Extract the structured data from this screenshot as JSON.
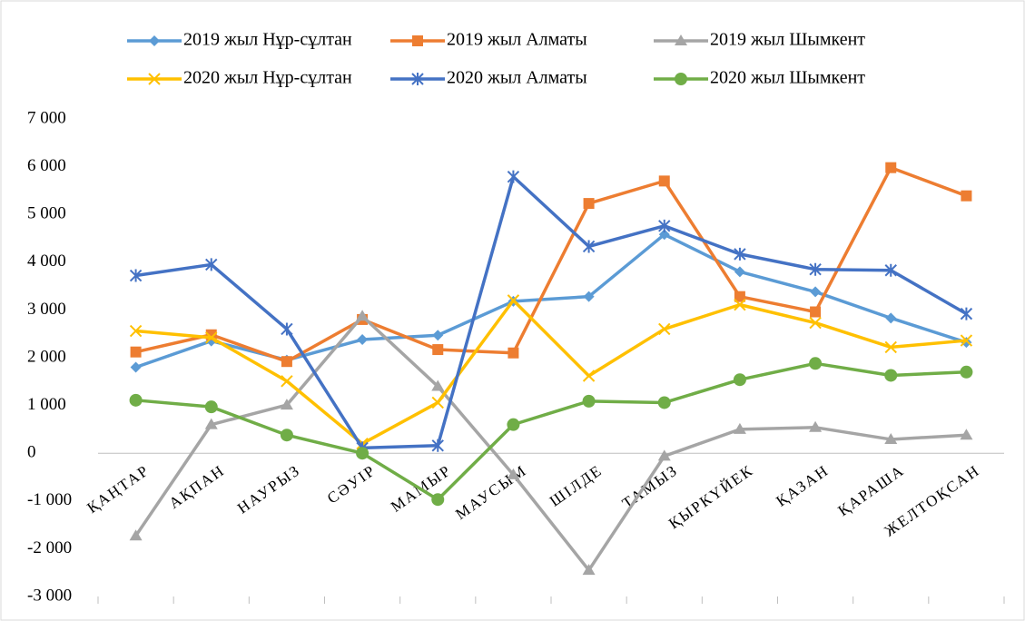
{
  "chart_data": {
    "type": "line",
    "categories": [
      "ҚАҢТАР",
      "АҚПАН",
      "НАУРЫЗ",
      "СӘУІР",
      "МАМЫР",
      "МАУСЫМ",
      "ШІЛДЕ",
      "ТАМЫЗ",
      "ҚЫРКҮЙЕК",
      "ҚАЗАН",
      "ҚАРАША",
      "ЖЕЛТОҚСАН"
    ],
    "series": [
      {
        "name": "2019 жыл Нұр-сұлтан",
        "color": "#5b9bd5",
        "marker": "diamond",
        "values": [
          1800,
          2350,
          1950,
          2380,
          2470,
          3180,
          3280,
          4580,
          3800,
          3380,
          2830,
          2320
        ]
      },
      {
        "name": "2019 жыл Алматы",
        "color": "#ed7d31",
        "marker": "square",
        "values": [
          2120,
          2480,
          1920,
          2800,
          2170,
          2100,
          5230,
          5700,
          3280,
          2960,
          5980,
          5390
        ]
      },
      {
        "name": "2019 жыл Шымкент",
        "color": "#a5a5a5",
        "marker": "triangle",
        "values": [
          -1730,
          600,
          1010,
          2870,
          1400,
          -450,
          -2450,
          -60,
          500,
          540,
          290,
          380
        ]
      },
      {
        "name": "2020 жыл Нұр-сұлтан",
        "color": "#ffc000",
        "marker": "x",
        "values": [
          2560,
          2420,
          1510,
          200,
          1060,
          3200,
          1620,
          2600,
          3110,
          2730,
          2220,
          2360
        ]
      },
      {
        "name": "2020 жыл Алматы",
        "color": "#4472c4",
        "marker": "star",
        "values": [
          3720,
          3950,
          2600,
          110,
          160,
          5790,
          4330,
          4760,
          4170,
          3850,
          3830,
          2920
        ]
      },
      {
        "name": "2020 жыл Шымкент",
        "color": "#70ad47",
        "marker": "circle",
        "values": [
          1110,
          970,
          380,
          0,
          -970,
          600,
          1090,
          1060,
          1540,
          1880,
          1630,
          1700
        ]
      }
    ],
    "ylim": [
      -3000,
      7000
    ],
    "yticks": [
      {
        "value": -3000,
        "label": "-3 000"
      },
      {
        "value": -2000,
        "label": "-2 000"
      },
      {
        "value": -1000,
        "label": "-1 000"
      },
      0,
      {
        "value": 1000,
        "label": "1 000"
      },
      {
        "value": 2000,
        "label": "2 000"
      },
      {
        "value": 3000,
        "label": "3 000"
      },
      {
        "value": 4000,
        "label": "4 000"
      },
      {
        "value": 5000,
        "label": "5 000"
      },
      {
        "value": 6000,
        "label": "6 000"
      },
      {
        "value": 7000,
        "label": "7 000"
      }
    ],
    "legend": "top",
    "grid": false
  }
}
